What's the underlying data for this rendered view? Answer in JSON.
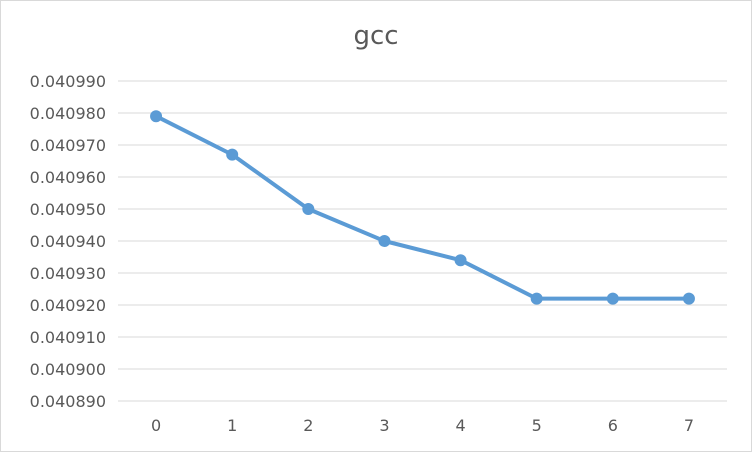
{
  "chart_data": {
    "type": "line",
    "title": "gcc",
    "xlabel": "",
    "ylabel": "",
    "categories": [
      "0",
      "1",
      "2",
      "3",
      "4",
      "5",
      "6",
      "7"
    ],
    "series": [
      {
        "values": [
          0.040979,
          0.040967,
          0.04095,
          0.04094,
          0.040934,
          0.040922,
          0.040922,
          0.040922
        ]
      }
    ],
    "ylim": [
      0.04089,
      0.04099
    ],
    "yticks": [
      "0.040890",
      "0.040900",
      "0.040910",
      "0.040920",
      "0.040930",
      "0.040940",
      "0.040950",
      "0.040960",
      "0.040970",
      "0.040980",
      "0.040990"
    ],
    "grid": "horizontal",
    "legend": "none",
    "colors": {
      "series": "#5b9bd5",
      "grid": "#d9d9d9",
      "text": "#595959"
    }
  }
}
